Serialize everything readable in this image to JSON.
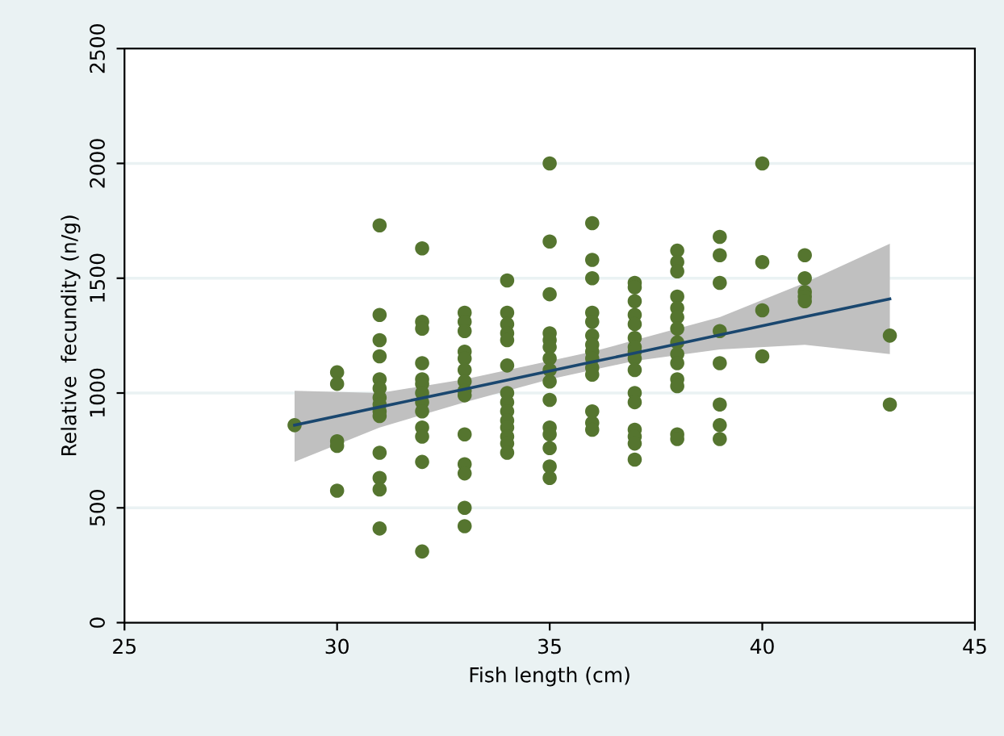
{
  "chart_data": {
    "type": "scatter",
    "xlabel": "Fish length (cm)",
    "ylabel": "Relative  fecundity (n/g)",
    "xlim": [
      25,
      45
    ],
    "xticks": [
      25,
      30,
      35,
      40,
      45
    ],
    "ylim": [
      0,
      2500
    ],
    "yticks": [
      0,
      500,
      1000,
      1500,
      2000,
      2500
    ],
    "grid": "y",
    "series": [
      {
        "type": "line",
        "color": "#1a476f",
        "x": [
          29,
          31,
          33,
          35,
          36,
          37,
          39,
          41,
          43
        ],
        "values": [
          860,
          939,
          1017,
          1096,
          1135,
          1174,
          1253,
          1332,
          1410
        ],
        "lower": [
          700,
          850,
          960,
          1060,
          1100,
          1140,
          1190,
          1210,
          1170
        ],
        "upper": [
          1010,
          1000,
          1060,
          1140,
          1180,
          1230,
          1330,
          1480,
          1650
        ]
      },
      {
        "color": "#55752f",
        "marker": "circle",
        "x": [
          29,
          30,
          30,
          30,
          30,
          30,
          31,
          31,
          31,
          31,
          31,
          31,
          31,
          31,
          31,
          31,
          31,
          31,
          31,
          31,
          32,
          32,
          32,
          32,
          32,
          32,
          32,
          32,
          32,
          32,
          32,
          32,
          32,
          33,
          33,
          33,
          33,
          33,
          33,
          33,
          33,
          33,
          33,
          33,
          33,
          33,
          33,
          34,
          34,
          34,
          34,
          34,
          34,
          34,
          34,
          34,
          34,
          34,
          34,
          34,
          34,
          35,
          35,
          35,
          35,
          35,
          35,
          35,
          35,
          35,
          35,
          35,
          35,
          35,
          35,
          35,
          36,
          36,
          36,
          36,
          36,
          36,
          36,
          36,
          36,
          36,
          36,
          36,
          36,
          36,
          37,
          37,
          37,
          37,
          37,
          37,
          37,
          37,
          37,
          37,
          37,
          37,
          37,
          37,
          37,
          37,
          38,
          38,
          38,
          38,
          38,
          38,
          38,
          38,
          38,
          38,
          38,
          38,
          38,
          38,
          39,
          39,
          39,
          39,
          39,
          39,
          39,
          39,
          40,
          40,
          40,
          40,
          41,
          41,
          41,
          41,
          41,
          43,
          43
        ],
        "values": [
          860,
          1090,
          1040,
          790,
          770,
          575,
          1730,
          1340,
          1230,
          1160,
          1060,
          1020,
          980,
          950,
          920,
          900,
          740,
          630,
          580,
          410,
          1630,
          1310,
          1280,
          1130,
          1060,
          1040,
          1000,
          960,
          920,
          850,
          810,
          700,
          310,
          1350,
          1310,
          1270,
          1180,
          1150,
          1100,
          1050,
          1010,
          990,
          820,
          690,
          650,
          500,
          420,
          1490,
          1350,
          1300,
          1260,
          1230,
          1120,
          1000,
          960,
          920,
          880,
          850,
          810,
          780,
          740,
          2000,
          1660,
          1430,
          1260,
          1230,
          1200,
          1150,
          1100,
          1050,
          970,
          850,
          820,
          760,
          680,
          630,
          1740,
          1580,
          1500,
          1350,
          1310,
          1250,
          1210,
          1180,
          1150,
          1110,
          1080,
          920,
          870,
          840,
          1480,
          1460,
          1400,
          1340,
          1300,
          1240,
          1200,
          1180,
          1150,
          1100,
          1000,
          960,
          840,
          810,
          780,
          710,
          1620,
          1570,
          1530,
          1420,
          1370,
          1330,
          1280,
          1220,
          1170,
          1130,
          1060,
          1030,
          820,
          800,
          1680,
          1600,
          1480,
          1270,
          1130,
          950,
          860,
          800,
          2000,
          1570,
          1360,
          1160,
          1600,
          1500,
          1440,
          1420,
          1400,
          1250,
          950
        ]
      }
    ]
  }
}
